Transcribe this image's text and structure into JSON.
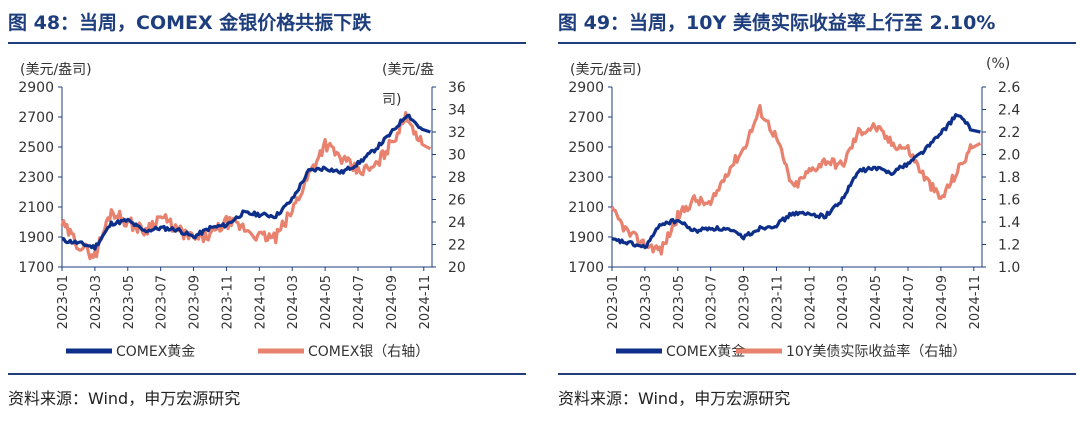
{
  "charts": [
    {
      "title": "图 48：当周，COMEX 金银价格共振下跌",
      "source": "资料来源：Wind，申万宏源研究",
      "left_unit": "(美元/盎司)",
      "right_unit_line1": "(美元/盎",
      "right_unit_line2": "司)",
      "left_ticks": [
        "2900",
        "2700",
        "2500",
        "2300",
        "2100",
        "1900",
        "1700"
      ],
      "right_ticks": [
        "36",
        "34",
        "32",
        "30",
        "28",
        "26",
        "24",
        "22",
        "20"
      ],
      "x_ticks": [
        "2023-01",
        "2023-03",
        "2023-05",
        "2023-07",
        "2023-09",
        "2023-11",
        "2024-01",
        "2024-03",
        "2024-05",
        "2024-07",
        "2024-09",
        "2024-11"
      ],
      "legend_1": "COMEX黄金",
      "legend_2": "COMEX银（右轴）"
    },
    {
      "title": "图 49：当周，10Y 美债实际收益率上行至 2.10%",
      "source": "资料来源：Wind，申万宏源研究",
      "left_unit": "(美元/盎司)",
      "right_unit": "(%)",
      "left_ticks": [
        "2900",
        "2700",
        "2500",
        "2300",
        "2100",
        "1900",
        "1700"
      ],
      "right_ticks": [
        "2.6",
        "2.4",
        "2.2",
        "2.0",
        "1.8",
        "1.6",
        "1.4",
        "1.2",
        "1.0"
      ],
      "x_ticks": [
        "2023-01",
        "2023-03",
        "2023-05",
        "2023-07",
        "2023-09",
        "2023-11",
        "2024-01",
        "2024-03",
        "2024-05",
        "2024-07",
        "2024-09",
        "2024-11"
      ],
      "legend_1": "COMEX黄金",
      "legend_2": "10Y美债实际收益率（右轴）"
    }
  ],
  "colors": {
    "gold": "#0d2f8a",
    "silver": "#e8826e",
    "axis": "#1d3d7c",
    "title": "#1d3d7c"
  },
  "chart_data": [
    {
      "type": "line",
      "x_range": [
        "2023-01",
        "2024-11"
      ],
      "ylim_left": [
        1700,
        2900
      ],
      "ylim_right": [
        20,
        36
      ],
      "series": [
        {
          "name": "COMEX黄金",
          "axis": "left",
          "x": [
            "2023-01",
            "2023-02",
            "2023-03",
            "2023-04",
            "2023-05",
            "2023-06",
            "2023-07",
            "2023-08",
            "2023-09",
            "2023-10",
            "2023-11",
            "2023-12",
            "2024-01",
            "2024-02",
            "2024-03",
            "2024-04",
            "2024-05",
            "2024-06",
            "2024-07",
            "2024-08",
            "2024-09",
            "2024-10",
            "2024-11"
          ],
          "values": [
            1880,
            1860,
            1830,
            1990,
            2010,
            1940,
            1960,
            1950,
            1900,
            1960,
            1980,
            2060,
            2050,
            2040,
            2150,
            2340,
            2360,
            2330,
            2390,
            2480,
            2590,
            2720,
            2600
          ]
        },
        {
          "name": "COMEX银（右轴）",
          "axis": "right",
          "x": [
            "2023-01",
            "2023-02",
            "2023-03",
            "2023-04",
            "2023-05",
            "2023-06",
            "2023-07",
            "2023-08",
            "2023-09",
            "2023-10",
            "2023-11",
            "2023-12",
            "2024-01",
            "2024-02",
            "2024-03",
            "2024-04",
            "2024-05",
            "2024-06",
            "2024-07",
            "2024-08",
            "2024-09",
            "2024-10",
            "2024-11"
          ],
          "values": [
            23.8,
            22.0,
            21.0,
            25.0,
            24.0,
            23.2,
            24.5,
            23.3,
            22.5,
            22.8,
            24.0,
            23.5,
            22.7,
            22.6,
            25.0,
            28.2,
            31.0,
            29.6,
            28.5,
            28.8,
            31.0,
            33.5,
            30.5
          ]
        }
      ]
    },
    {
      "type": "line",
      "x_range": [
        "2023-01",
        "2024-11"
      ],
      "ylim_left": [
        1700,
        2900
      ],
      "ylim_right": [
        1.0,
        2.6
      ],
      "series": [
        {
          "name": "COMEX黄金",
          "axis": "left",
          "x": [
            "2023-01",
            "2023-02",
            "2023-03",
            "2023-04",
            "2023-05",
            "2023-06",
            "2023-07",
            "2023-08",
            "2023-09",
            "2023-10",
            "2023-11",
            "2023-12",
            "2024-01",
            "2024-02",
            "2024-03",
            "2024-04",
            "2024-05",
            "2024-06",
            "2024-07",
            "2024-08",
            "2024-09",
            "2024-10",
            "2024-11"
          ],
          "values": [
            1880,
            1860,
            1830,
            1990,
            2010,
            1940,
            1960,
            1950,
            1900,
            1960,
            1980,
            2060,
            2050,
            2040,
            2150,
            2340,
            2360,
            2330,
            2390,
            2480,
            2590,
            2720,
            2600
          ]
        },
        {
          "name": "10Y美债实际收益率（右轴）",
          "axis": "right",
          "x": [
            "2023-01",
            "2023-02",
            "2023-03",
            "2023-04",
            "2023-05",
            "2023-06",
            "2023-07",
            "2023-08",
            "2023-09",
            "2023-10",
            "2023-11",
            "2023-12",
            "2024-01",
            "2024-02",
            "2024-03",
            "2024-04",
            "2024-05",
            "2024-06",
            "2024-07",
            "2024-08",
            "2024-09",
            "2024-10",
            "2024-11"
          ],
          "values": [
            1.5,
            1.3,
            1.2,
            1.15,
            1.45,
            1.6,
            1.55,
            1.85,
            2.05,
            2.4,
            2.15,
            1.7,
            1.85,
            1.95,
            1.9,
            2.2,
            2.25,
            2.1,
            2.05,
            1.8,
            1.6,
            1.85,
            2.1
          ]
        }
      ]
    }
  ]
}
